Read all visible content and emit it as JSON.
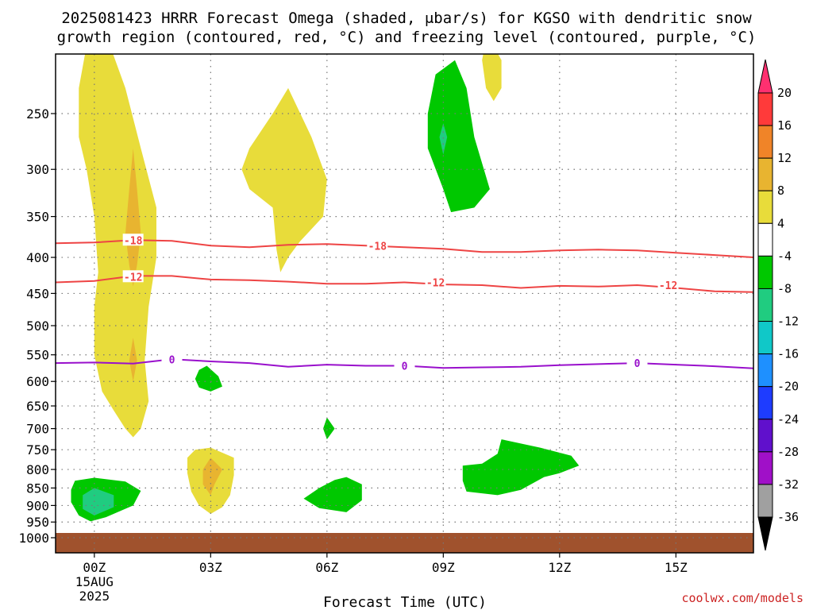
{
  "chart_data": {
    "type": "heatmap",
    "title_line1": "2025081423 HRRR Forecast Omega (shaded, μbar/s) for KGSO with dendritic snow",
    "title_line2": "growth region (contoured, red, °C) and freezing level (contoured, purple, °C)",
    "xlabel": "Forecast Time (UTC)",
    "x_ticks": [
      {
        "hour": 1,
        "label": "00Z",
        "sub1": "15AUG",
        "sub2": "2025"
      },
      {
        "hour": 4,
        "label": "03Z"
      },
      {
        "hour": 7,
        "label": "06Z"
      },
      {
        "hour": 10,
        "label": "09Z"
      },
      {
        "hour": 13,
        "label": "12Z"
      },
      {
        "hour": 16,
        "label": "15Z"
      }
    ],
    "xlim_hours": [
      0,
      18
    ],
    "y_ticks": [
      250,
      300,
      350,
      400,
      450,
      500,
      550,
      600,
      650,
      700,
      750,
      800,
      850,
      900,
      950,
      1000
    ],
    "ylim_hPa": [
      200,
      1000
    ],
    "grid": true,
    "colorbar": {
      "labels": [
        "20",
        "16",
        "12",
        "8",
        "4",
        "-4",
        "-8",
        "-12",
        "-16",
        "-20",
        "-24",
        "-28",
        "-32",
        "-36"
      ],
      "colors": [
        "#ff3070",
        "#ff3a3a",
        "#f08428",
        "#e8b430",
        "#e8dc3a",
        "#ffffff",
        "#00c800",
        "#20cc80",
        "#10c8c8",
        "#1e90ff",
        "#1e3cff",
        "#6010cc",
        "#a010c8",
        "#a0a0a0"
      ]
    },
    "contours": [
      {
        "name": "-18",
        "color": "#ee4444",
        "points": [
          [
            0,
            382
          ],
          [
            1,
            381
          ],
          [
            2,
            378
          ],
          [
            3,
            379
          ],
          [
            4,
            385
          ],
          [
            5,
            387
          ],
          [
            6,
            384
          ],
          [
            7,
            383
          ],
          [
            8,
            385
          ],
          [
            9,
            387
          ],
          [
            10,
            389
          ],
          [
            11,
            393
          ],
          [
            12,
            393
          ],
          [
            13,
            391
          ],
          [
            14,
            390
          ],
          [
            15,
            391
          ],
          [
            16,
            394
          ],
          [
            17,
            397
          ],
          [
            18,
            400
          ]
        ],
        "labels": [
          [
            2.0,
            378
          ],
          [
            8.3,
            385
          ]
        ]
      },
      {
        "name": "-12",
        "color": "#ee4444",
        "points": [
          [
            0,
            434
          ],
          [
            1,
            432
          ],
          [
            2,
            425
          ],
          [
            3,
            425
          ],
          [
            4,
            430
          ],
          [
            5,
            431
          ],
          [
            6,
            433
          ],
          [
            7,
            436
          ],
          [
            8,
            436
          ],
          [
            9,
            434
          ],
          [
            10,
            437
          ],
          [
            11,
            438
          ],
          [
            12,
            442
          ],
          [
            13,
            439
          ],
          [
            14,
            440
          ],
          [
            15,
            438
          ],
          [
            16,
            442
          ],
          [
            17,
            447
          ],
          [
            18,
            448
          ]
        ],
        "labels": [
          [
            2.0,
            426
          ],
          [
            9.8,
            434
          ],
          [
            15.8,
            438
          ]
        ]
      },
      {
        "name": "0",
        "color": "#9910cc",
        "points": [
          [
            0,
            565
          ],
          [
            1,
            564
          ],
          [
            2,
            566
          ],
          [
            3,
            558
          ],
          [
            4,
            562
          ],
          [
            5,
            565
          ],
          [
            6,
            572
          ],
          [
            7,
            568
          ],
          [
            8,
            570
          ],
          [
            9,
            570
          ],
          [
            10,
            574
          ],
          [
            11,
            573
          ],
          [
            12,
            572
          ],
          [
            13,
            569
          ],
          [
            14,
            567
          ],
          [
            15,
            565
          ],
          [
            16,
            568
          ],
          [
            17,
            571
          ],
          [
            18,
            575
          ]
        ],
        "labels": [
          [
            3.0,
            558
          ],
          [
            9.0,
            570
          ],
          [
            15.0,
            565
          ]
        ]
      }
    ],
    "shaded": [
      {
        "value": 4,
        "color": "#e8dc3a",
        "poly": [
          [
            1.0,
            196
          ],
          [
            1.4,
            200
          ],
          [
            1.8,
            230
          ],
          [
            2.2,
            280
          ],
          [
            2.6,
            340
          ],
          [
            2.6,
            400
          ],
          [
            2.4,
            470
          ],
          [
            2.3,
            560
          ],
          [
            2.4,
            640
          ],
          [
            2.2,
            700
          ],
          [
            2.0,
            720
          ],
          [
            1.8,
            700
          ],
          [
            1.5,
            660
          ],
          [
            1.2,
            620
          ],
          [
            1.0,
            550
          ],
          [
            1.0,
            470
          ],
          [
            1.1,
            420
          ],
          [
            1.0,
            350
          ],
          [
            0.8,
            300
          ],
          [
            0.6,
            270
          ],
          [
            0.6,
            230
          ],
          [
            0.8,
            200
          ]
        ]
      },
      {
        "value": 8,
        "color": "#e8b430",
        "poly": [
          [
            2.0,
            280
          ],
          [
            2.1,
            320
          ],
          [
            2.2,
            370
          ],
          [
            2.1,
            410
          ],
          [
            2.0,
            440
          ],
          [
            1.9,
            410
          ],
          [
            1.8,
            370
          ],
          [
            1.9,
            320
          ]
        ]
      },
      {
        "value": 8,
        "color": "#e8b430",
        "poly": [
          [
            2.0,
            520
          ],
          [
            2.1,
            560
          ],
          [
            2.0,
            600
          ],
          [
            1.9,
            560
          ]
        ]
      },
      {
        "value": 4,
        "color": "#e8dc3a",
        "poly": [
          [
            6.0,
            230
          ],
          [
            6.6,
            270
          ],
          [
            7.0,
            310
          ],
          [
            6.9,
            350
          ],
          [
            6.3,
            380
          ],
          [
            6.0,
            400
          ],
          [
            5.8,
            420
          ],
          [
            5.7,
            390
          ],
          [
            5.6,
            340
          ],
          [
            5.0,
            320
          ],
          [
            4.8,
            300
          ],
          [
            5.0,
            280
          ],
          [
            5.6,
            250
          ]
        ]
      },
      {
        "value": 4,
        "color": "#e8dc3a",
        "poly": [
          [
            11.2,
            196
          ],
          [
            11.5,
            210
          ],
          [
            11.5,
            230
          ],
          [
            11.3,
            240
          ],
          [
            11.1,
            230
          ],
          [
            11.0,
            210
          ],
          [
            11.1,
            196
          ]
        ]
      },
      {
        "value": -4,
        "color": "#00c800",
        "poly": [
          [
            10.3,
            210
          ],
          [
            10.6,
            230
          ],
          [
            10.8,
            270
          ],
          [
            11.2,
            320
          ],
          [
            10.8,
            340
          ],
          [
            10.2,
            345
          ],
          [
            10.0,
            320
          ],
          [
            9.6,
            280
          ],
          [
            9.6,
            250
          ],
          [
            9.8,
            220
          ]
        ]
      },
      {
        "value": -8,
        "color": "#20cc80",
        "poly": [
          [
            10.0,
            258
          ],
          [
            10.1,
            270
          ],
          [
            10.0,
            286
          ],
          [
            9.9,
            270
          ]
        ]
      },
      {
        "value": -4,
        "color": "#00c800",
        "poly": [
          [
            3.9,
            570
          ],
          [
            4.2,
            590
          ],
          [
            4.3,
            610
          ],
          [
            4.0,
            620
          ],
          [
            3.7,
            612
          ],
          [
            3.6,
            595
          ],
          [
            3.7,
            578
          ]
        ]
      },
      {
        "value": -4,
        "color": "#00c800",
        "poly": [
          [
            7.0,
            675
          ],
          [
            7.2,
            700
          ],
          [
            7.0,
            725
          ],
          [
            6.9,
            700
          ]
        ]
      },
      {
        "value": 4,
        "color": "#e8dc3a",
        "poly": [
          [
            4.0,
            745
          ],
          [
            4.6,
            770
          ],
          [
            4.6,
            815
          ],
          [
            4.5,
            870
          ],
          [
            4.3,
            905
          ],
          [
            4.0,
            925
          ],
          [
            3.7,
            900
          ],
          [
            3.5,
            860
          ],
          [
            3.4,
            810
          ],
          [
            3.4,
            770
          ],
          [
            3.6,
            750
          ]
        ]
      },
      {
        "value": 8,
        "color": "#e8b430",
        "poly": [
          [
            4.0,
            770
          ],
          [
            4.3,
            800
          ],
          [
            4.1,
            840
          ],
          [
            4.0,
            870
          ],
          [
            3.8,
            840
          ],
          [
            3.8,
            800
          ]
        ]
      },
      {
        "value": -4,
        "color": "#00c800",
        "poly": [
          [
            0.5,
            830
          ],
          [
            1.0,
            822
          ],
          [
            1.8,
            832
          ],
          [
            2.2,
            858
          ],
          [
            2.0,
            900
          ],
          [
            1.3,
            935
          ],
          [
            0.9,
            948
          ],
          [
            0.6,
            930
          ],
          [
            0.4,
            890
          ],
          [
            0.4,
            855
          ]
        ]
      },
      {
        "value": -8,
        "color": "#20cc80",
        "poly": [
          [
            1.0,
            850
          ],
          [
            1.5,
            870
          ],
          [
            1.5,
            905
          ],
          [
            1.0,
            930
          ],
          [
            0.7,
            910
          ],
          [
            0.7,
            870
          ]
        ]
      },
      {
        "value": -4,
        "color": "#00c800",
        "poly": [
          [
            7.5,
            820
          ],
          [
            7.9,
            840
          ],
          [
            7.9,
            885
          ],
          [
            7.5,
            920
          ],
          [
            6.8,
            908
          ],
          [
            6.4,
            880
          ],
          [
            6.8,
            850
          ],
          [
            7.2,
            828
          ]
        ]
      },
      {
        "value": -4,
        "color": "#00c800",
        "poly": [
          [
            11.5,
            725
          ],
          [
            12.5,
            745
          ],
          [
            13.3,
            765
          ],
          [
            13.5,
            790
          ],
          [
            13.0,
            810
          ],
          [
            12.6,
            820
          ],
          [
            12.0,
            855
          ],
          [
            11.4,
            870
          ],
          [
            10.6,
            860
          ],
          [
            10.5,
            830
          ],
          [
            10.5,
            790
          ],
          [
            11.0,
            785
          ],
          [
            11.4,
            760
          ]
        ]
      }
    ]
  },
  "credit": "coolwx.com/models"
}
